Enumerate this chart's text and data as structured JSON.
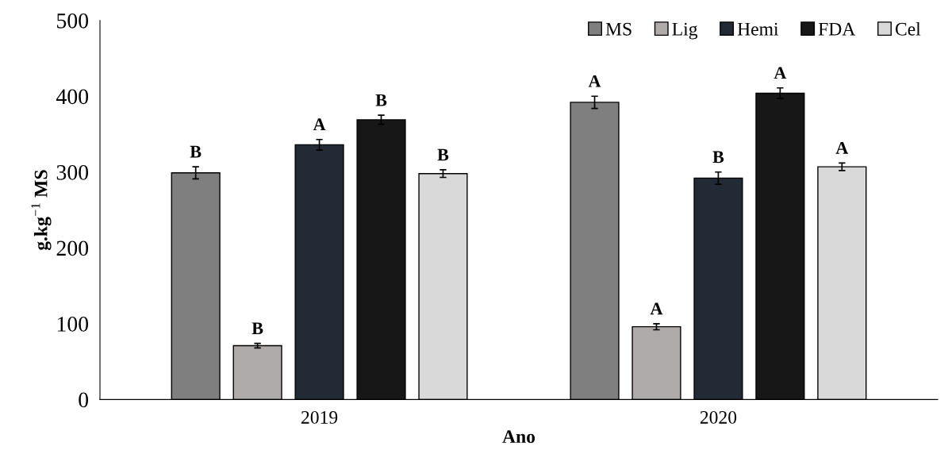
{
  "chart_data": {
    "type": "bar",
    "xlabel": "Ano",
    "ylabel": "g.kg$^{−1}$ MS",
    "categories": [
      "2019",
      "2020"
    ],
    "series": [
      {
        "name": "MS",
        "color": "#7f7f7f",
        "values": [
          299,
          392
        ],
        "errors": [
          8,
          8
        ],
        "value_labels": [
          "B",
          "A"
        ]
      },
      {
        "name": "Lig",
        "color": "#afabab",
        "values": [
          71,
          96
        ],
        "errors": [
          3,
          4
        ],
        "value_labels": [
          "B",
          "A"
        ]
      },
      {
        "name": "Hemi",
        "color": "#222a35",
        "values": [
          336,
          292
        ],
        "errors": [
          7,
          8
        ],
        "value_labels": [
          "A",
          "B"
        ]
      },
      {
        "name": "FDA",
        "color": "#171717",
        "values": [
          369,
          404
        ],
        "errors": [
          6,
          7
        ],
        "value_labels": [
          "B",
          "A"
        ]
      },
      {
        "name": "Cel",
        "color": "#d9d9d9",
        "values": [
          298,
          307
        ],
        "errors": [
          5,
          5
        ],
        "value_labels": [
          "B",
          "A"
        ]
      }
    ],
    "ylim": [
      0,
      500
    ],
    "yticks": [
      0,
      100,
      200,
      300,
      400,
      500
    ],
    "grid": false,
    "legend": "top right"
  }
}
